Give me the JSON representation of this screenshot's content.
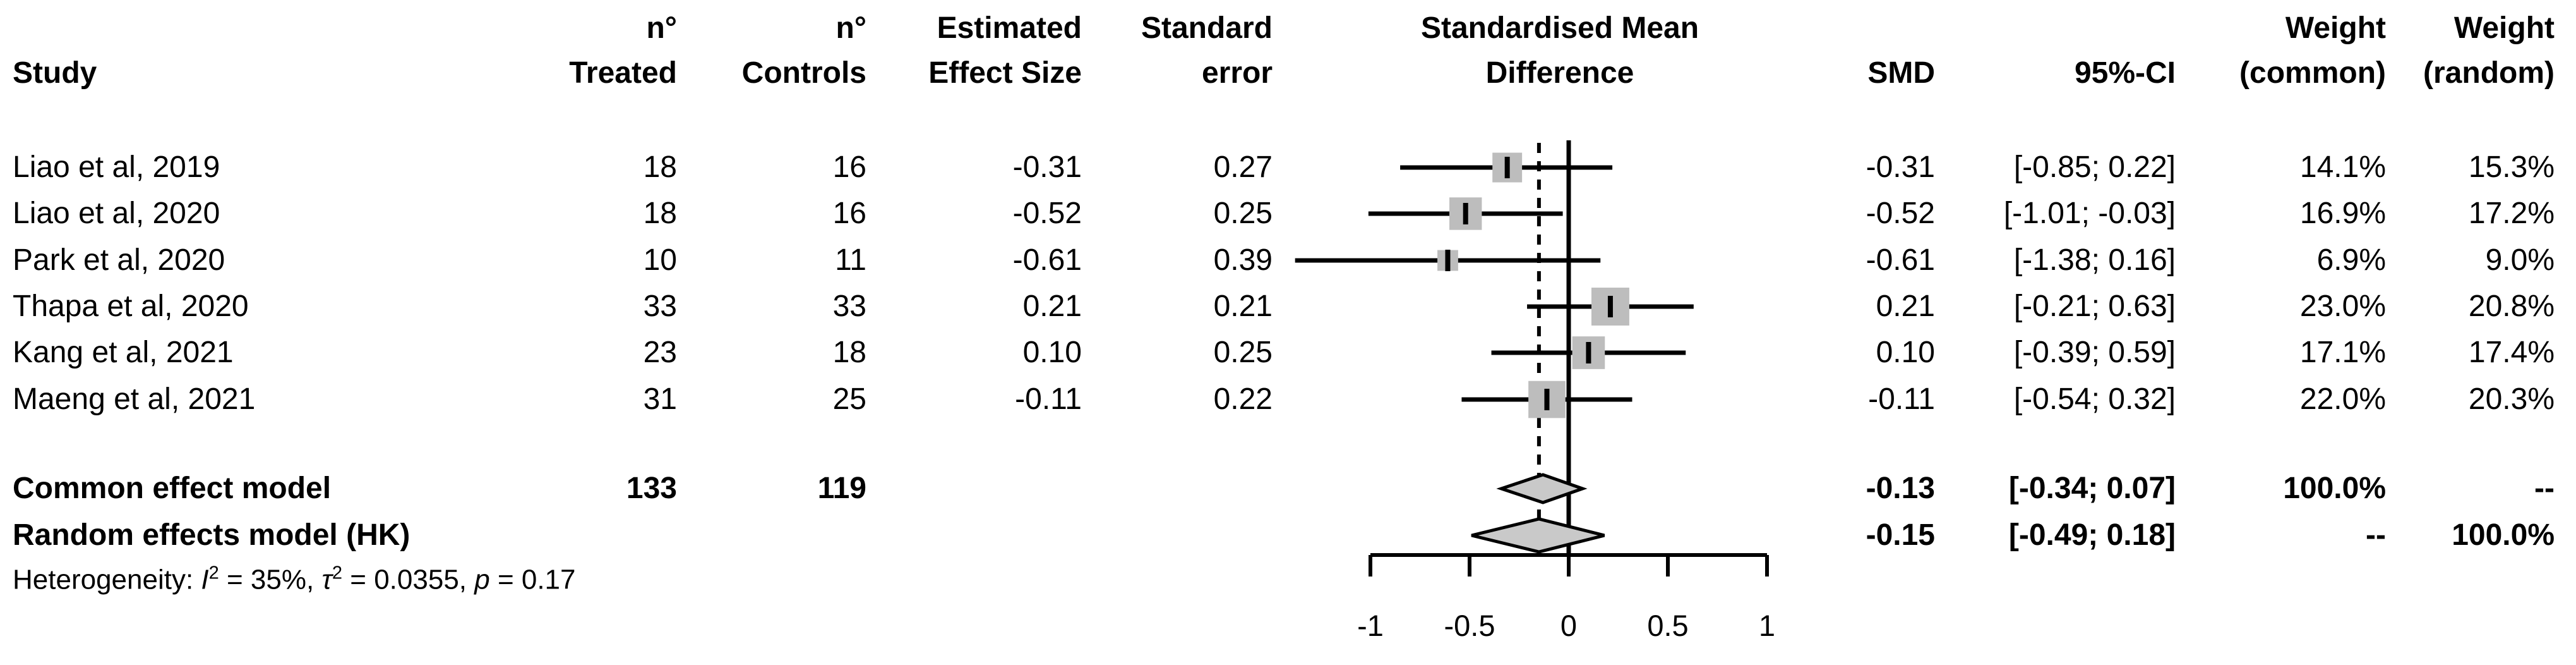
{
  "header": {
    "study": "Study",
    "n_treated_line1": "n°",
    "n_treated_line2": "Treated",
    "n_controls_line1": "n°",
    "n_controls_line2": "Controls",
    "effect_line1": "Estimated",
    "effect_line2": "Effect Size",
    "se_line1": "Standard",
    "se_line2": "error",
    "plot_line1": "Standardised Mean",
    "plot_line2": "Difference",
    "smd": "SMD",
    "ci": "95%-CI",
    "w_common_line1": "Weight",
    "w_common_line2": "(common)",
    "w_random_line1": "Weight",
    "w_random_line2": "(random)"
  },
  "rows": [
    {
      "study": "Liao et al, 2019",
      "n_treated": "18",
      "n_controls": "16",
      "effect": "-0.31",
      "se": "0.27",
      "smd": "-0.31",
      "ci": "[-0.85; 0.22]",
      "w_common": "14.1%",
      "w_random": "15.3%"
    },
    {
      "study": "Liao et al, 2020",
      "n_treated": "18",
      "n_controls": "16",
      "effect": "-0.52",
      "se": "0.25",
      "smd": "-0.52",
      "ci": "[-1.01; -0.03]",
      "w_common": "16.9%",
      "w_random": "17.2%"
    },
    {
      "study": "Park et al, 2020",
      "n_treated": "10",
      "n_controls": "11",
      "effect": "-0.61",
      "se": "0.39",
      "smd": "-0.61",
      "ci": "[-1.38; 0.16]",
      "w_common": "6.9%",
      "w_random": "9.0%"
    },
    {
      "study": "Thapa et al, 2020",
      "n_treated": "33",
      "n_controls": "33",
      "effect": "0.21",
      "se": "0.21",
      "smd": "0.21",
      "ci": "[-0.21; 0.63]",
      "w_common": "23.0%",
      "w_random": "20.8%"
    },
    {
      "study": "Kang et al, 2021",
      "n_treated": "23",
      "n_controls": "18",
      "effect": "0.10",
      "se": "0.25",
      "smd": "0.10",
      "ci": "[-0.39; 0.59]",
      "w_common": "17.1%",
      "w_random": "17.4%"
    },
    {
      "study": "Maeng et al, 2021",
      "n_treated": "31",
      "n_controls": "25",
      "effect": "-0.11",
      "se": "0.22",
      "smd": "-0.11",
      "ci": "[-0.54; 0.32]",
      "w_common": "22.0%",
      "w_random": "20.3%"
    }
  ],
  "summary": {
    "common": {
      "label": "Common effect model",
      "n_treated": "133",
      "n_controls": "119",
      "smd": "-0.13",
      "ci": "[-0.34; 0.07]",
      "w_common": "100.0%",
      "w_random": "--"
    },
    "random": {
      "label": "Random effects model (HK)",
      "smd": "-0.15",
      "ci": "[-0.49; 0.18]",
      "w_common": "--",
      "w_random": "100.0%"
    }
  },
  "heterogeneity": {
    "prefix": "Heterogeneity: ",
    "i2_symbol": "I",
    "i2_sup": "2",
    "seg1": " = 35%, ",
    "tau_symbol": "τ",
    "tau_sup": "2",
    "seg2": " = 0.0355, ",
    "p_symbol": "p",
    "seg3": " = 0.17"
  },
  "chart_data": {
    "type": "scatter",
    "variant": "forest-plot",
    "title": "Standardised Mean Difference",
    "xlabel": "",
    "xlim": [
      -1,
      1
    ],
    "x_ticks": [
      -1,
      -0.5,
      0,
      0.5,
      1
    ],
    "zero_line": 0,
    "dashed_line_at": -0.15,
    "grid": false,
    "colors": {
      "square": "#bdbdbd",
      "diamond": "#c9c9c9",
      "line": "#000000"
    },
    "studies": [
      {
        "name": "Liao et al, 2019",
        "estimate": -0.31,
        "ci_lower": -0.85,
        "ci_upper": 0.22,
        "weight_common": 14.1,
        "weight_random": 15.3
      },
      {
        "name": "Liao et al, 2020",
        "estimate": -0.52,
        "ci_lower": -1.01,
        "ci_upper": -0.03,
        "weight_common": 16.9,
        "weight_random": 17.2
      },
      {
        "name": "Park et al, 2020",
        "estimate": -0.61,
        "ci_lower": -1.38,
        "ci_upper": 0.16,
        "weight_common": 6.9,
        "weight_random": 9.0
      },
      {
        "name": "Thapa et al, 2020",
        "estimate": 0.21,
        "ci_lower": -0.21,
        "ci_upper": 0.63,
        "weight_common": 23.0,
        "weight_random": 20.8
      },
      {
        "name": "Kang et al, 2021",
        "estimate": 0.1,
        "ci_lower": -0.39,
        "ci_upper": 0.59,
        "weight_common": 17.1,
        "weight_random": 17.4
      },
      {
        "name": "Maeng et al, 2021",
        "estimate": -0.11,
        "ci_lower": -0.54,
        "ci_upper": 0.32,
        "weight_common": 22.0,
        "weight_random": 20.3
      }
    ],
    "summaries": [
      {
        "name": "Common effect model",
        "estimate": -0.13,
        "ci_lower": -0.34,
        "ci_upper": 0.07,
        "weight_common": 100.0
      },
      {
        "name": "Random effects model (HK)",
        "estimate": -0.15,
        "ci_lower": -0.49,
        "ci_upper": 0.18,
        "weight_random": 100.0
      }
    ]
  }
}
